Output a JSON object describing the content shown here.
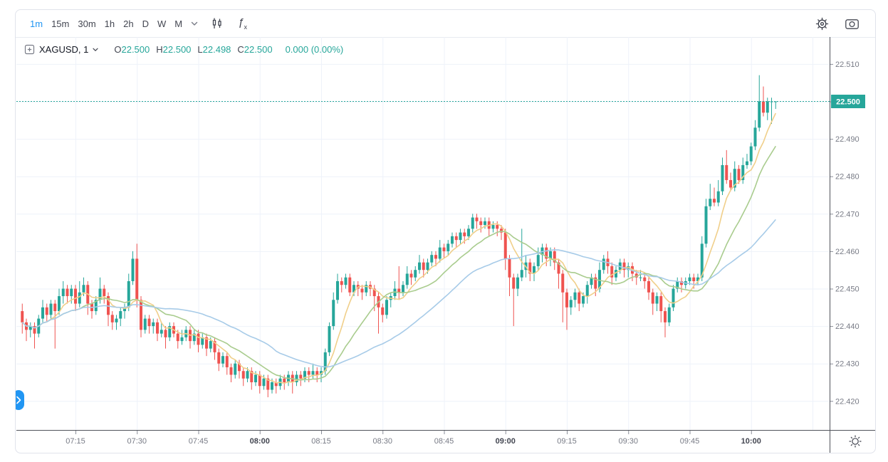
{
  "toolbar": {
    "timeframes": [
      {
        "label": "1m",
        "active": true
      },
      {
        "label": "15m",
        "active": false
      },
      {
        "label": "30m",
        "active": false
      },
      {
        "label": "1h",
        "active": false
      },
      {
        "label": "2h",
        "active": false
      },
      {
        "label": "D",
        "active": false
      },
      {
        "label": "W",
        "active": false
      },
      {
        "label": "M",
        "active": false
      }
    ],
    "fx_label": "ƒ",
    "fx_sub": "x"
  },
  "legend": {
    "symbol": "XAGUSD, 1",
    "ohlc": [
      {
        "k": "O",
        "v": "22.500"
      },
      {
        "k": "H",
        "v": "22.500"
      },
      {
        "k": "L",
        "v": "22.498"
      },
      {
        "k": "C",
        "v": "22.500"
      }
    ],
    "change": "0.000 (0.00%)"
  },
  "colors": {
    "up": "#26a69a",
    "down": "#ef5350",
    "ma_fast": "#f0cf8a",
    "ma_mid": "#a9cc8e",
    "ma_slow": "#a7cbe8",
    "accent": "#2196f3",
    "grid": "#eef2fa",
    "axis_line": "#50535b",
    "tick_text": "#787b86",
    "tick_text_bold": "#434651",
    "last_price_bg": "#26a69a",
    "last_price_text": "#ffffff"
  },
  "chart_data": {
    "type": "candlestick",
    "symbol": "XAGUSD",
    "interval": "1m",
    "start_time": "07:02",
    "interval_minutes": 1,
    "last_price": 22.5,
    "last_price_label": "22.500",
    "y_axis": {
      "ticks": [
        22.51,
        22.5,
        22.49,
        22.48,
        22.47,
        22.46,
        22.45,
        22.44,
        22.43,
        22.42
      ],
      "decimals": 3
    },
    "x_axis": {
      "ticks": [
        {
          "label": "07:15",
          "offset": 13,
          "bold": false
        },
        {
          "label": "07:30",
          "offset": 28,
          "bold": false
        },
        {
          "label": "07:45",
          "offset": 43,
          "bold": false
        },
        {
          "label": "08:00",
          "offset": 58,
          "bold": true
        },
        {
          "label": "08:15",
          "offset": 73,
          "bold": false
        },
        {
          "label": "08:30",
          "offset": 88,
          "bold": false
        },
        {
          "label": "08:45",
          "offset": 103,
          "bold": false
        },
        {
          "label": "09:00",
          "offset": 118,
          "bold": true
        },
        {
          "label": "09:15",
          "offset": 133,
          "bold": false
        },
        {
          "label": "09:30",
          "offset": 148,
          "bold": false
        },
        {
          "label": "09:45",
          "offset": 163,
          "bold": false
        },
        {
          "label": "10:00",
          "offset": 178,
          "bold": true
        }
      ],
      "extra_gridline_offsets": [
        193
      ]
    },
    "overlays": [
      {
        "name": "sma-fast",
        "period": 7,
        "color": "#f0cf8a"
      },
      {
        "name": "sma-mid",
        "period": 15,
        "color": "#a9cc8e"
      },
      {
        "name": "sma-slow",
        "period": 35,
        "color": "#a7cbe8"
      }
    ],
    "candles": [
      [
        22.444,
        22.446,
        22.438,
        22.441
      ],
      [
        22.441,
        22.442,
        22.436,
        22.439
      ],
      [
        22.439,
        22.441,
        22.437,
        22.44
      ],
      [
        22.44,
        22.441,
        22.434,
        22.438
      ],
      [
        22.438,
        22.443,
        22.437,
        22.442
      ],
      [
        22.442,
        22.447,
        22.441,
        22.445
      ],
      [
        22.445,
        22.446,
        22.441,
        22.443
      ],
      [
        22.443,
        22.447,
        22.442,
        22.446
      ],
      [
        22.446,
        22.447,
        22.434,
        22.444
      ],
      [
        22.444,
        22.45,
        22.443,
        22.448
      ],
      [
        22.448,
        22.452,
        22.446,
        22.45
      ],
      [
        22.45,
        22.451,
        22.446,
        22.448
      ],
      [
        22.448,
        22.451,
        22.446,
        22.45
      ],
      [
        22.45,
        22.451,
        22.444,
        22.446
      ],
      [
        22.446,
        22.452,
        22.445,
        22.449
      ],
      [
        22.449,
        22.453,
        22.448,
        22.451
      ],
      [
        22.451,
        22.452,
        22.443,
        22.446
      ],
      [
        22.446,
        22.447,
        22.442,
        22.444
      ],
      [
        22.444,
        22.448,
        22.443,
        22.447
      ],
      [
        22.447,
        22.453,
        22.446,
        22.45
      ],
      [
        22.45,
        22.451,
        22.446,
        22.448
      ],
      [
        22.448,
        22.449,
        22.44,
        22.443
      ],
      [
        22.443,
        22.444,
        22.439,
        22.441
      ],
      [
        22.441,
        22.443,
        22.439,
        22.442
      ],
      [
        22.442,
        22.445,
        22.44,
        22.444
      ],
      [
        22.444,
        22.446,
        22.442,
        22.445
      ],
      [
        22.445,
        22.454,
        22.444,
        22.452
      ],
      [
        22.452,
        22.46,
        22.451,
        22.458
      ],
      [
        22.458,
        22.462,
        22.445,
        22.447
      ],
      [
        22.447,
        22.448,
        22.437,
        22.439
      ],
      [
        22.439,
        22.443,
        22.438,
        22.442
      ],
      [
        22.442,
        22.443,
        22.438,
        22.44
      ],
      [
        22.44,
        22.442,
        22.438,
        22.441
      ],
      [
        22.441,
        22.442,
        22.436,
        22.438
      ],
      [
        22.438,
        22.441,
        22.437,
        22.439
      ],
      [
        22.439,
        22.44,
        22.434,
        22.437
      ],
      [
        22.437,
        22.441,
        22.436,
        22.44
      ],
      [
        22.44,
        22.441,
        22.437,
        22.438
      ],
      [
        22.438,
        22.439,
        22.434,
        22.436
      ],
      [
        22.436,
        22.439,
        22.435,
        22.437
      ],
      [
        22.437,
        22.44,
        22.436,
        22.439
      ],
      [
        22.439,
        22.44,
        22.434,
        22.436
      ],
      [
        22.436,
        22.439,
        22.435,
        22.438
      ],
      [
        22.438,
        22.439,
        22.433,
        22.435
      ],
      [
        22.435,
        22.438,
        22.434,
        22.437
      ],
      [
        22.437,
        22.438,
        22.432,
        22.434
      ],
      [
        22.434,
        22.437,
        22.433,
        22.436
      ],
      [
        22.436,
        22.437,
        22.431,
        22.433
      ],
      [
        22.433,
        22.434,
        22.428,
        22.43
      ],
      [
        22.43,
        22.433,
        22.429,
        22.432
      ],
      [
        22.432,
        22.433,
        22.427,
        22.429
      ],
      [
        22.429,
        22.43,
        22.425,
        22.427
      ],
      [
        22.427,
        22.431,
        22.426,
        22.43
      ],
      [
        22.43,
        22.431,
        22.426,
        22.428
      ],
      [
        22.428,
        22.429,
        22.424,
        22.426
      ],
      [
        22.426,
        22.429,
        22.425,
        22.428
      ],
      [
        22.428,
        22.429,
        22.423,
        22.425
      ],
      [
        22.425,
        22.428,
        22.424,
        22.427
      ],
      [
        22.427,
        22.428,
        22.422,
        22.424
      ],
      [
        22.424,
        22.427,
        22.423,
        22.426
      ],
      [
        22.426,
        22.427,
        22.421,
        22.423
      ],
      [
        22.423,
        22.426,
        22.422,
        22.425
      ],
      [
        22.425,
        22.426,
        22.422,
        22.424
      ],
      [
        22.424,
        22.427,
        22.423,
        22.426
      ],
      [
        22.426,
        22.427,
        22.423,
        22.425
      ],
      [
        22.425,
        22.428,
        22.424,
        22.427
      ],
      [
        22.427,
        22.428,
        22.422,
        22.425
      ],
      [
        22.425,
        22.428,
        22.424,
        22.427
      ],
      [
        22.427,
        22.428,
        22.424,
        22.426
      ],
      [
        22.426,
        22.429,
        22.425,
        22.428
      ],
      [
        22.428,
        22.429,
        22.425,
        22.427
      ],
      [
        22.427,
        22.43,
        22.426,
        22.428
      ],
      [
        22.428,
        22.429,
        22.425,
        22.427
      ],
      [
        22.427,
        22.429,
        22.425,
        22.428
      ],
      [
        22.428,
        22.434,
        22.427,
        22.433
      ],
      [
        22.433,
        22.441,
        22.432,
        22.44
      ],
      [
        22.44,
        22.449,
        22.439,
        22.447
      ],
      [
        22.447,
        22.454,
        22.446,
        22.452
      ],
      [
        22.452,
        22.453,
        22.449,
        22.451
      ],
      [
        22.451,
        22.454,
        22.45,
        22.453
      ],
      [
        22.453,
        22.454,
        22.448,
        22.449
      ],
      [
        22.449,
        22.452,
        22.448,
        22.451
      ],
      [
        22.451,
        22.452,
        22.448,
        22.45
      ],
      [
        22.45,
        22.451,
        22.447,
        22.449
      ],
      [
        22.449,
        22.452,
        22.448,
        22.451
      ],
      [
        22.451,
        22.452,
        22.448,
        22.45
      ],
      [
        22.45,
        22.451,
        22.444,
        22.448
      ],
      [
        22.448,
        22.449,
        22.438,
        22.445
      ],
      [
        22.445,
        22.446,
        22.441,
        22.443
      ],
      [
        22.443,
        22.448,
        22.442,
        22.447
      ],
      [
        22.447,
        22.449,
        22.445,
        22.448
      ],
      [
        22.448,
        22.452,
        22.447,
        22.45
      ],
      [
        22.45,
        22.456,
        22.447,
        22.449
      ],
      [
        22.449,
        22.452,
        22.448,
        22.451
      ],
      [
        22.451,
        22.456,
        22.45,
        22.454
      ],
      [
        22.454,
        22.455,
        22.451,
        22.453
      ],
      [
        22.453,
        22.456,
        22.452,
        22.455
      ],
      [
        22.455,
        22.459,
        22.454,
        22.457
      ],
      [
        22.457,
        22.458,
        22.453,
        22.455
      ],
      [
        22.455,
        22.458,
        22.454,
        22.457
      ],
      [
        22.457,
        22.46,
        22.456,
        22.459
      ],
      [
        22.459,
        22.46,
        22.456,
        22.458
      ],
      [
        22.458,
        22.463,
        22.457,
        22.461
      ],
      [
        22.461,
        22.462,
        22.458,
        22.46
      ],
      [
        22.46,
        22.463,
        22.459,
        22.462
      ],
      [
        22.462,
        22.465,
        22.461,
        22.464
      ],
      [
        22.464,
        22.465,
        22.461,
        22.463
      ],
      [
        22.463,
        22.466,
        22.462,
        22.465
      ],
      [
        22.465,
        22.466,
        22.462,
        22.464
      ],
      [
        22.464,
        22.467,
        22.463,
        22.466
      ],
      [
        22.466,
        22.47,
        22.465,
        22.469
      ],
      [
        22.469,
        22.47,
        22.466,
        22.468
      ],
      [
        22.468,
        22.469,
        22.465,
        22.467
      ],
      [
        22.467,
        22.469,
        22.466,
        22.468
      ],
      [
        22.468,
        22.469,
        22.464,
        22.466
      ],
      [
        22.466,
        22.468,
        22.465,
        22.467
      ],
      [
        22.467,
        22.468,
        22.464,
        22.466
      ],
      [
        22.466,
        22.467,
        22.463,
        22.465
      ],
      [
        22.465,
        22.466,
        22.455,
        22.458
      ],
      [
        22.458,
        22.459,
        22.448,
        22.453
      ],
      [
        22.453,
        22.454,
        22.44,
        22.45
      ],
      [
        22.45,
        22.454,
        22.448,
        22.453
      ],
      [
        22.453,
        22.466,
        22.452,
        22.455
      ],
      [
        22.455,
        22.459,
        22.453,
        22.457
      ],
      [
        22.457,
        22.458,
        22.452,
        22.454
      ],
      [
        22.454,
        22.457,
        22.452,
        22.456
      ],
      [
        22.456,
        22.461,
        22.455,
        22.459
      ],
      [
        22.459,
        22.462,
        22.457,
        22.461
      ],
      [
        22.461,
        22.462,
        22.456,
        22.458
      ],
      [
        22.458,
        22.461,
        22.456,
        22.46
      ],
      [
        22.46,
        22.461,
        22.455,
        22.457
      ],
      [
        22.457,
        22.458,
        22.45,
        22.454
      ],
      [
        22.454,
        22.455,
        22.441,
        22.449
      ],
      [
        22.449,
        22.45,
        22.439,
        22.445
      ],
      [
        22.445,
        22.448,
        22.443,
        22.447
      ],
      [
        22.447,
        22.45,
        22.445,
        22.449
      ],
      [
        22.449,
        22.45,
        22.444,
        22.446
      ],
      [
        22.446,
        22.449,
        22.445,
        22.448
      ],
      [
        22.448,
        22.452,
        22.446,
        22.451
      ],
      [
        22.451,
        22.454,
        22.45,
        22.453
      ],
      [
        22.453,
        22.454,
        22.448,
        22.45
      ],
      [
        22.45,
        22.457,
        22.449,
        22.455
      ],
      [
        22.455,
        22.459,
        22.454,
        22.458
      ],
      [
        22.458,
        22.46,
        22.454,
        22.456
      ],
      [
        22.456,
        22.457,
        22.451,
        22.453
      ],
      [
        22.453,
        22.456,
        22.452,
        22.455
      ],
      [
        22.455,
        22.458,
        22.454,
        22.457
      ],
      [
        22.457,
        22.458,
        22.453,
        22.455
      ],
      [
        22.455,
        22.457,
        22.453,
        22.456
      ],
      [
        22.456,
        22.457,
        22.452,
        22.454
      ],
      [
        22.454,
        22.455,
        22.451,
        22.453
      ],
      [
        22.453,
        22.455,
        22.452,
        22.453
      ],
      [
        22.453,
        22.454,
        22.45,
        22.452
      ],
      [
        22.452,
        22.453,
        22.447,
        22.449
      ],
      [
        22.449,
        22.45,
        22.443,
        22.446
      ],
      [
        22.446,
        22.449,
        22.444,
        22.448
      ],
      [
        22.448,
        22.449,
        22.441,
        22.444
      ],
      [
        22.444,
        22.445,
        22.437,
        22.441
      ],
      [
        22.441,
        22.446,
        22.44,
        22.445
      ],
      [
        22.445,
        22.451,
        22.444,
        22.45
      ],
      [
        22.45,
        22.453,
        22.449,
        22.452
      ],
      [
        22.452,
        22.453,
        22.449,
        22.451
      ],
      [
        22.451,
        22.453,
        22.45,
        22.452
      ],
      [
        22.452,
        22.454,
        22.451,
        22.453
      ],
      [
        22.453,
        22.454,
        22.45,
        22.452
      ],
      [
        22.452,
        22.454,
        22.451,
        22.453
      ],
      [
        22.453,
        22.464,
        22.452,
        22.462
      ],
      [
        22.462,
        22.474,
        22.461,
        22.472
      ],
      [
        22.472,
        22.478,
        22.471,
        22.474
      ],
      [
        22.474,
        22.477,
        22.472,
        22.473
      ],
      [
        22.473,
        22.479,
        22.472,
        22.476
      ],
      [
        22.476,
        22.485,
        22.475,
        22.483
      ],
      [
        22.483,
        22.487,
        22.478,
        22.479
      ],
      [
        22.479,
        22.481,
        22.476,
        22.477
      ],
      [
        22.477,
        22.484,
        22.476,
        22.482
      ],
      [
        22.482,
        22.483,
        22.478,
        22.479
      ],
      [
        22.479,
        22.485,
        22.478,
        22.483
      ],
      [
        22.483,
        22.486,
        22.482,
        22.484
      ],
      [
        22.484,
        22.489,
        22.483,
        22.488
      ],
      [
        22.488,
        22.495,
        22.487,
        22.493
      ],
      [
        22.493,
        22.507,
        22.492,
        22.5
      ],
      [
        22.5,
        22.504,
        22.496,
        22.497
      ],
      [
        22.497,
        22.501,
        22.495,
        22.5
      ],
      [
        22.5,
        22.501,
        22.494,
        22.5
      ],
      [
        22.5,
        22.5,
        22.498,
        22.5
      ]
    ]
  }
}
